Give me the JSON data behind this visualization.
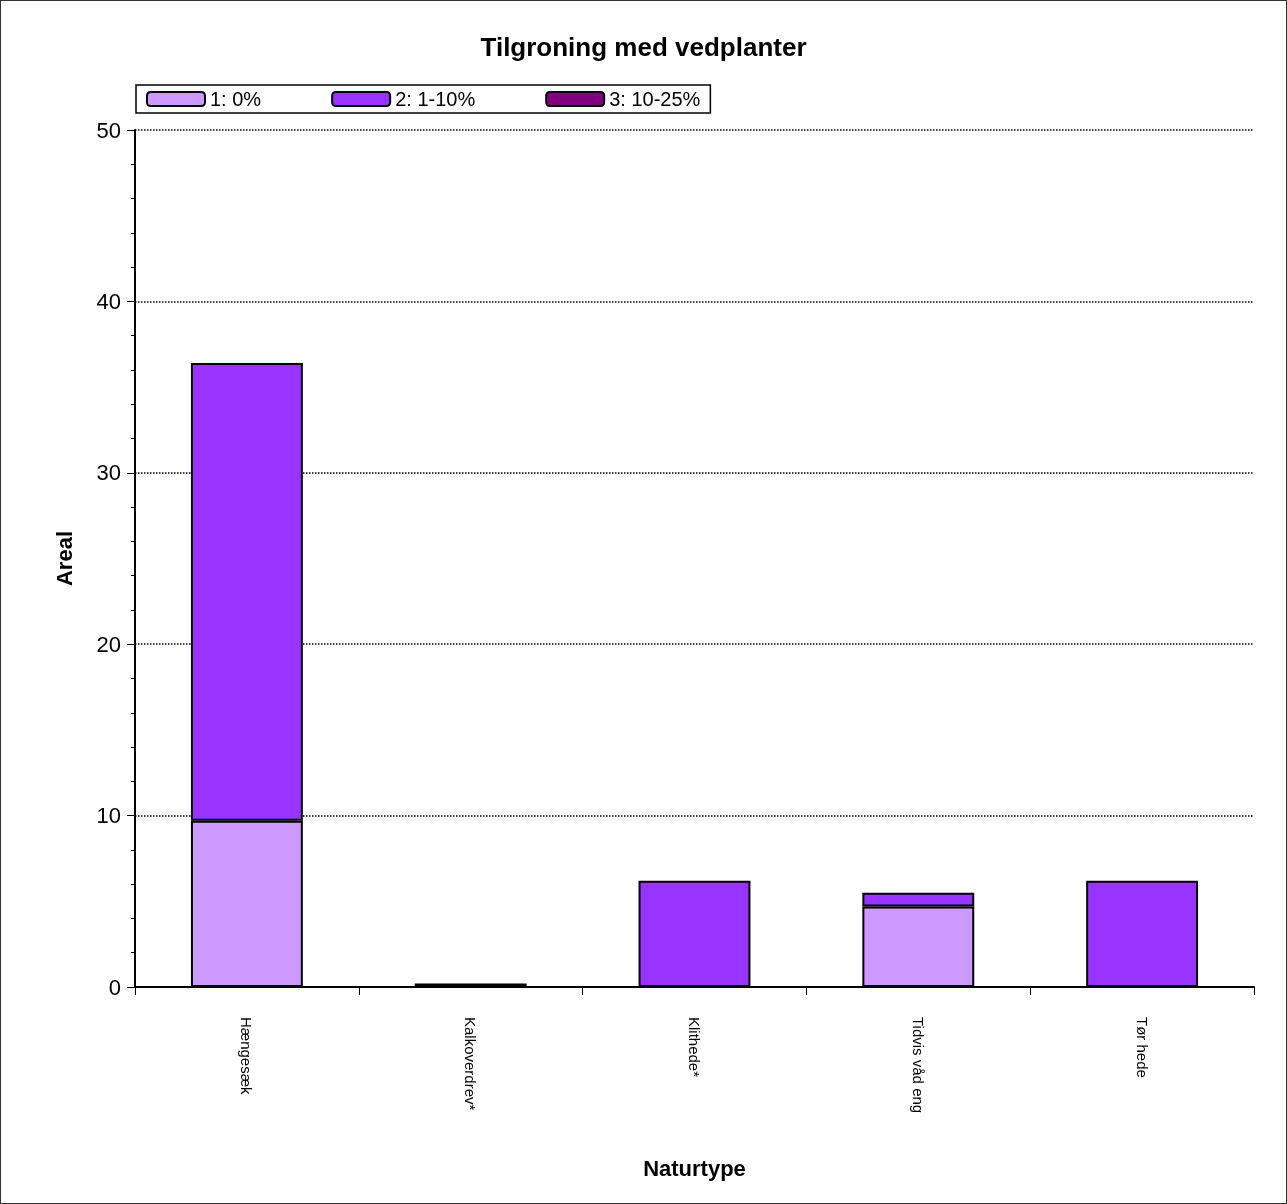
{
  "chart_data": {
    "type": "bar",
    "title": "Tilgroning med vedplanter",
    "xlabel": "Naturtype",
    "ylabel": "Areal",
    "categories": [
      "Hængesæk",
      "Kalkoverdrev*",
      "Klithede*",
      "Tidvis våd eng",
      "Tør hede"
    ],
    "series": [
      {
        "name": "1: 0%",
        "color": "#cc99ff",
        "values": [
          9.7,
          null,
          null,
          4.7,
          null
        ]
      },
      {
        "name": "2: 1-10%",
        "color": "#9933ff",
        "values": [
          26.7,
          null,
          6.2,
          0.8,
          6.2
        ]
      },
      {
        "name": "3: 10-25%",
        "color": "#800080",
        "values": [
          null,
          0.2,
          null,
          null,
          null
        ]
      }
    ],
    "stacked": true,
    "ylim": [
      0,
      50
    ],
    "yticks": [
      0,
      10,
      20,
      30,
      40,
      50
    ],
    "grid": "y",
    "legend": "top left"
  }
}
